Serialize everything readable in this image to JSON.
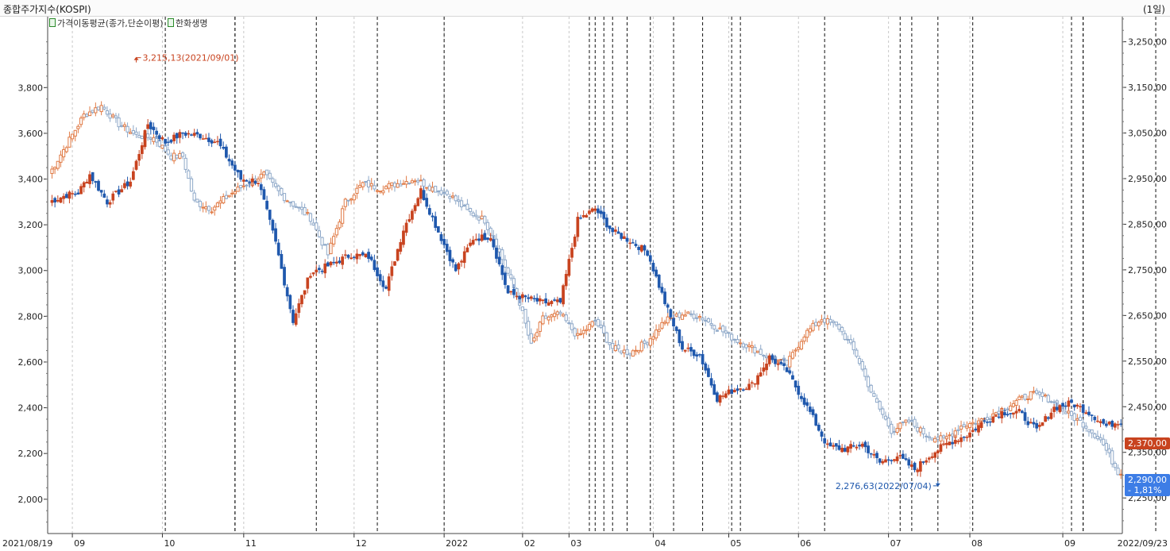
{
  "header": {
    "title": "종합주가지수(KOSPI)",
    "period": "(1일)"
  },
  "legend": {
    "items": [
      "가격이동평균(종가,단순이평)",
      "한화생명"
    ]
  },
  "colors": {
    "up": "#c8431f",
    "down": "#1f58ad",
    "up_light": "#e07a45",
    "down_light": "#8ea8c8",
    "grid": "#c8c8c8",
    "event_line": "#111111"
  },
  "chart_data": {
    "type": "candlestick",
    "x_range": [
      "2021/08/19",
      "2022/09/23"
    ],
    "x_tick_labels": [
      "2021/08/19",
      "09",
      "10",
      "11",
      "12",
      "2022",
      "02",
      "03",
      "04",
      "05",
      "06",
      "07",
      "08",
      "09",
      "2022/09/23"
    ],
    "y_left": {
      "name": "종합주가지수(KOSPI)",
      "ticks": [
        2000,
        2200,
        2400,
        2600,
        2800,
        3000,
        3200,
        3400,
        3600,
        3800
      ],
      "tick_labels": [
        "2,000",
        "2,200",
        "2,400",
        "2,600",
        "2,800",
        "3,000",
        "3,200",
        "3,400",
        "3,600",
        "3,800"
      ],
      "range": [
        1850,
        4110
      ]
    },
    "y_right": {
      "name": "한화생명",
      "ticks": [
        2250,
        2350,
        2450,
        2550,
        2650,
        2750,
        2850,
        2950,
        3050,
        3150,
        3250
      ],
      "tick_labels": [
        "2,250,00",
        "2,350,00",
        "2,450,00",
        "2,550,00",
        "2,650,00",
        "2,750,00",
        "2,850,00",
        "2,950,00",
        "3,050,00",
        "3,150,00",
        "3,250,00"
      ],
      "range": [
        2172,
        3305
      ]
    },
    "series": [
      {
        "name": "한화생명",
        "axis": "left",
        "style": "solid",
        "anchors": [
          [
            0,
            3300
          ],
          [
            6,
            3330
          ],
          [
            10,
            3340
          ],
          [
            14,
            3420
          ],
          [
            20,
            3300
          ],
          [
            28,
            3390
          ],
          [
            34,
            3640
          ],
          [
            40,
            3560
          ],
          [
            46,
            3600
          ],
          [
            52,
            3590
          ],
          [
            58,
            3560
          ],
          [
            66,
            3400
          ],
          [
            72,
            3390
          ],
          [
            78,
            3120
          ],
          [
            84,
            2780
          ],
          [
            90,
            2990
          ],
          [
            96,
            3020
          ],
          [
            104,
            3070
          ],
          [
            110,
            3060
          ],
          [
            116,
            2920
          ],
          [
            122,
            3180
          ],
          [
            128,
            3350
          ],
          [
            134,
            3170
          ],
          [
            140,
            3000
          ],
          [
            146,
            3140
          ],
          [
            152,
            3150
          ],
          [
            158,
            2900
          ],
          [
            164,
            2880
          ],
          [
            170,
            2860
          ],
          [
            176,
            2860
          ],
          [
            182,
            3220
          ],
          [
            188,
            3270
          ],
          [
            194,
            3170
          ],
          [
            200,
            3130
          ],
          [
            206,
            3080
          ],
          [
            212,
            2860
          ],
          [
            218,
            2660
          ],
          [
            224,
            2630
          ],
          [
            230,
            2440
          ],
          [
            236,
            2480
          ],
          [
            242,
            2500
          ],
          [
            248,
            2620
          ],
          [
            254,
            2560
          ],
          [
            262,
            2380
          ],
          [
            268,
            2230
          ],
          [
            274,
            2220
          ],
          [
            280,
            2240
          ],
          [
            286,
            2160
          ],
          [
            292,
            2190
          ],
          [
            298,
            2130
          ],
          [
            304,
            2200
          ],
          [
            310,
            2250
          ],
          [
            316,
            2280
          ],
          [
            322,
            2340
          ],
          [
            328,
            2380
          ],
          [
            334,
            2380
          ],
          [
            340,
            2300
          ],
          [
            346,
            2400
          ],
          [
            352,
            2420
          ],
          [
            358,
            2380
          ],
          [
            364,
            2320
          ],
          [
            368,
            2340
          ]
        ]
      },
      {
        "name": "종합주가지수(KOSPI)",
        "axis": "left",
        "style": "hollow",
        "anchors": [
          [
            0,
            3420
          ],
          [
            6,
            3550
          ],
          [
            12,
            3680
          ],
          [
            18,
            3720
          ],
          [
            24,
            3640
          ],
          [
            30,
            3590
          ],
          [
            36,
            3580
          ],
          [
            42,
            3500
          ],
          [
            46,
            3500
          ],
          [
            50,
            3300
          ],
          [
            56,
            3270
          ],
          [
            62,
            3330
          ],
          [
            68,
            3380
          ],
          [
            74,
            3420
          ],
          [
            80,
            3330
          ],
          [
            86,
            3270
          ],
          [
            90,
            3230
          ],
          [
            96,
            3070
          ],
          [
            102,
            3300
          ],
          [
            108,
            3380
          ],
          [
            114,
            3360
          ],
          [
            120,
            3380
          ],
          [
            126,
            3400
          ],
          [
            132,
            3360
          ],
          [
            138,
            3330
          ],
          [
            144,
            3260
          ],
          [
            150,
            3220
          ],
          [
            156,
            3050
          ],
          [
            162,
            2860
          ],
          [
            166,
            2670
          ],
          [
            170,
            2790
          ],
          [
            176,
            2810
          ],
          [
            182,
            2710
          ],
          [
            188,
            2780
          ],
          [
            194,
            2660
          ],
          [
            200,
            2640
          ],
          [
            206,
            2690
          ],
          [
            212,
            2780
          ],
          [
            218,
            2810
          ],
          [
            224,
            2800
          ],
          [
            230,
            2750
          ],
          [
            236,
            2700
          ],
          [
            242,
            2660
          ],
          [
            248,
            2620
          ],
          [
            254,
            2590
          ],
          [
            260,
            2720
          ],
          [
            266,
            2790
          ],
          [
            272,
            2750
          ],
          [
            278,
            2630
          ],
          [
            284,
            2440
          ],
          [
            290,
            2300
          ],
          [
            296,
            2340
          ],
          [
            302,
            2280
          ],
          [
            308,
            2260
          ],
          [
            314,
            2320
          ],
          [
            320,
            2340
          ],
          [
            326,
            2380
          ],
          [
            332,
            2420
          ],
          [
            338,
            2460
          ],
          [
            344,
            2440
          ],
          [
            350,
            2380
          ],
          [
            356,
            2330
          ],
          [
            362,
            2260
          ],
          [
            368,
            2120
          ]
        ]
      }
    ],
    "event_line_bars": [
      40,
      64,
      64,
      92,
      113,
      136,
      186,
      188,
      191,
      194,
      199,
      207,
      215,
      225,
      235,
      238,
      267,
      293,
      297,
      306,
      318,
      352,
      356,
      356,
      381,
      399,
      399,
      402,
      402,
      410,
      411,
      414,
      422,
      455,
      478,
      481,
      483,
      490,
      498,
      539
    ],
    "annotations": [
      {
        "text": "3,215,13(2021/09/01)",
        "color": "#c8431f",
        "bar": 30,
        "value": 3215.13,
        "axis": "right"
      },
      {
        "text": "2,276,63(2022/07/04)",
        "color": "#1f58ad",
        "bar": 306,
        "value": 2276.63,
        "axis": "right"
      }
    ],
    "last_values": [
      {
        "text": "2,370,00",
        "value": 2370,
        "axis": "right",
        "color": "#c8431f"
      },
      {
        "text": "2,290,00",
        "sub": "- 1,81%",
        "value": 2290,
        "axis": "right",
        "color": "#3d7de6"
      }
    ]
  }
}
